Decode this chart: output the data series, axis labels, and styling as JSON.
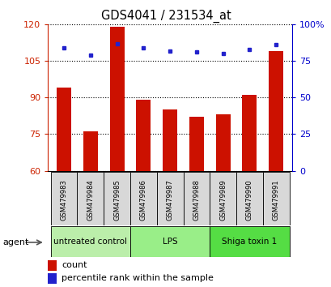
{
  "title": "GDS4041 / 231534_at",
  "samples": [
    "GSM479983",
    "GSM479984",
    "GSM479985",
    "GSM479986",
    "GSM479987",
    "GSM479988",
    "GSM479989",
    "GSM479990",
    "GSM479991"
  ],
  "count_values": [
    94,
    76,
    119,
    89,
    85,
    82,
    83,
    91,
    109
  ],
  "percentile_values": [
    84,
    79,
    87,
    84,
    82,
    81,
    80,
    83,
    86
  ],
  "baseline": 60,
  "ylim_left": [
    60,
    120
  ],
  "ylim_right": [
    0,
    100
  ],
  "yticks_left": [
    60,
    75,
    90,
    105,
    120
  ],
  "yticks_right": [
    0,
    25,
    50,
    75,
    100
  ],
  "bar_color": "#cc1100",
  "percentile_color": "#2222cc",
  "groups": [
    {
      "label": "untreated control",
      "start": 0,
      "end": 3,
      "color": "#bbeeaa"
    },
    {
      "label": "LPS",
      "start": 3,
      "end": 6,
      "color": "#99ee88"
    },
    {
      "label": "Shiga toxin 1",
      "start": 6,
      "end": 9,
      "color": "#55dd44"
    }
  ],
  "agent_label": "agent",
  "legend_count": "count",
  "legend_percentile": "percentile rank within the sample",
  "left_axis_color": "#cc2200",
  "right_axis_color": "#0000cc",
  "right_ytick_labels": [
    "0",
    "25",
    "50",
    "75",
    "100%"
  ]
}
